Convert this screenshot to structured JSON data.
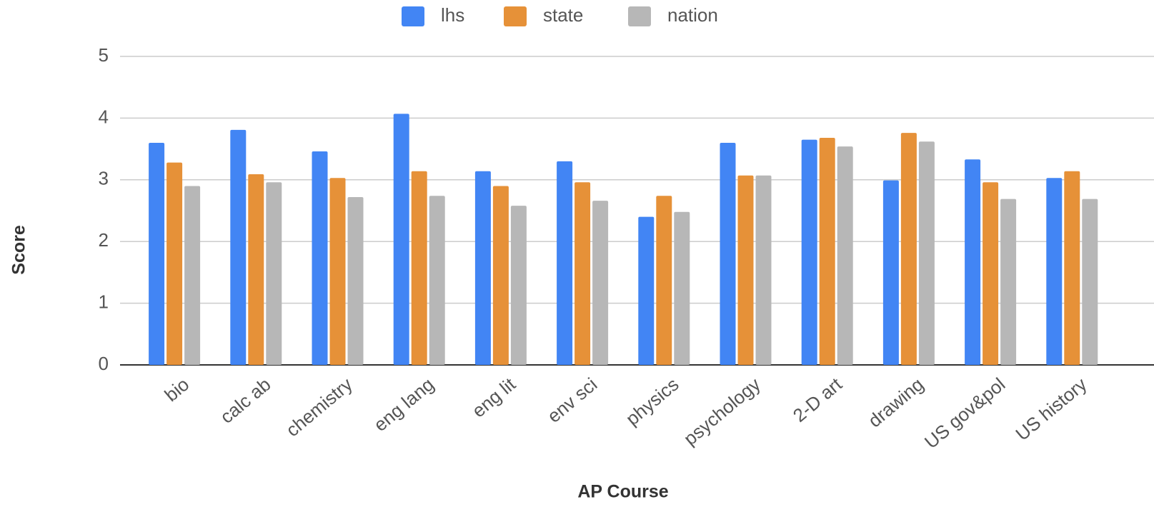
{
  "chart_data": {
    "type": "bar",
    "xlabel": "AP Course",
    "ylabel": "Score",
    "categories": [
      "bio",
      "calc ab",
      "chemistry",
      "eng lang",
      "eng lit",
      "env sci",
      "physics",
      "psychology",
      "2-D art",
      "drawing",
      "US gov&pol",
      "US history"
    ],
    "series": [
      {
        "name": "lhs",
        "color": "#4285f4",
        "values": [
          3.6,
          3.81,
          3.46,
          4.07,
          3.14,
          3.3,
          2.4,
          3.6,
          3.65,
          2.99,
          3.33,
          3.03
        ]
      },
      {
        "name": "state",
        "color": "#e69138",
        "values": [
          3.28,
          3.09,
          3.03,
          3.14,
          2.9,
          2.96,
          2.74,
          3.07,
          3.68,
          3.76,
          2.96,
          3.14
        ]
      },
      {
        "name": "nation",
        "color": "#b7b7b7",
        "values": [
          2.9,
          2.96,
          2.72,
          2.74,
          2.58,
          2.66,
          2.48,
          3.07,
          3.54,
          3.62,
          2.69,
          2.69
        ]
      }
    ],
    "ylim": [
      0,
      5
    ],
    "yticks": [
      0,
      1,
      2,
      3,
      4,
      5
    ],
    "grid": true,
    "legend": "top"
  }
}
